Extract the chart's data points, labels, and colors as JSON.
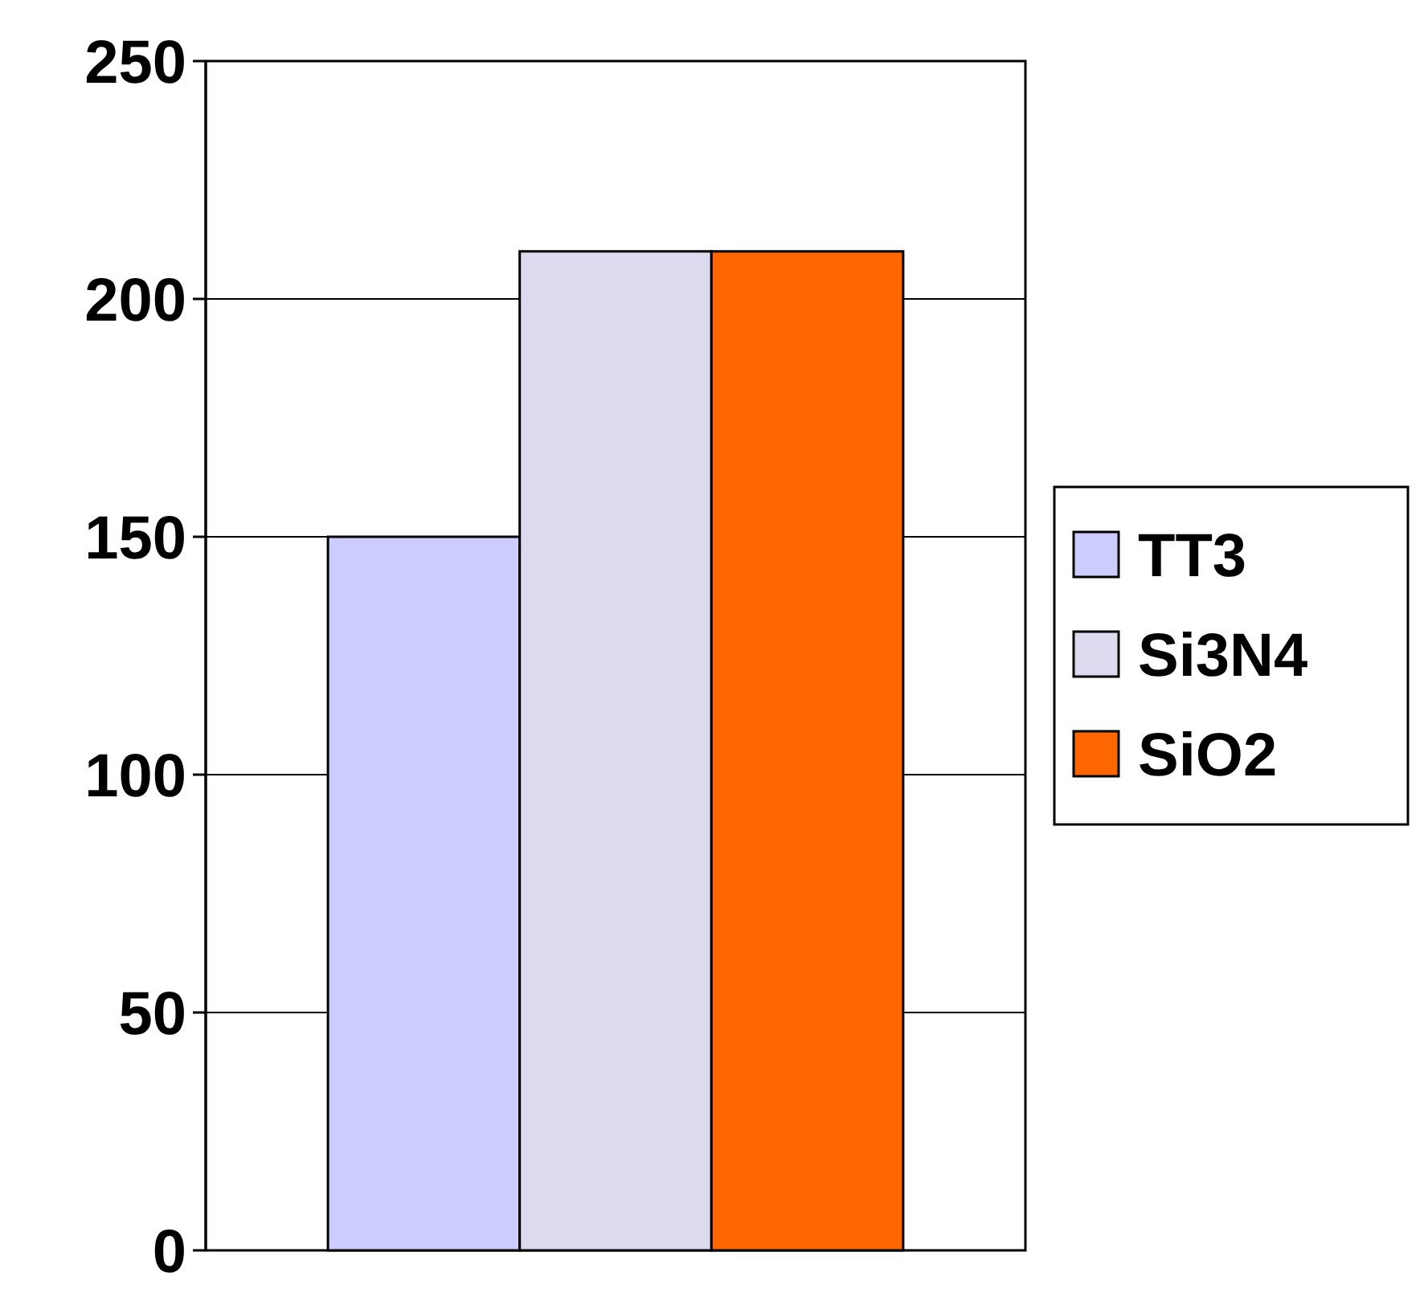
{
  "chart_data": {
    "type": "bar",
    "categories": [
      null
    ],
    "series": [
      {
        "name": "TT3",
        "color": "#ccccff",
        "values": [
          150
        ]
      },
      {
        "name": "Si3N4",
        "color": "#dcdaee",
        "values": [
          210
        ]
      },
      {
        "name": "SiO2",
        "color": "#ff6600",
        "values": [
          210
        ]
      }
    ],
    "ylim": [
      0,
      250
    ],
    "yticks": [
      0,
      50,
      100,
      150,
      200,
      250
    ],
    "grid": "y",
    "legend": "right"
  }
}
